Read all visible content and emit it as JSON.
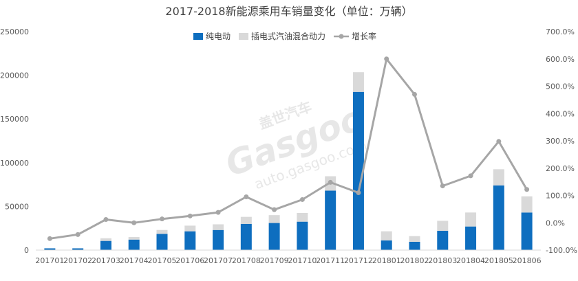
{
  "chart_data": {
    "type": "bar",
    "title": "2017-2018新能源乘用车销量变化（单位：万辆）",
    "categories": [
      "201701",
      "201702",
      "201703",
      "201704",
      "201705",
      "201706",
      "201707",
      "201708",
      "201709",
      "201710",
      "201711",
      "201712",
      "201801",
      "201802",
      "201803",
      "201804",
      "201805",
      "201806"
    ],
    "series": [
      {
        "name": "纯电动",
        "chart": "stacked-bar",
        "axis": "left",
        "color": "#0e6ebf",
        "values": [
          2000,
          2000,
          10500,
          12000,
          18500,
          21500,
          23000,
          30000,
          31000,
          32500,
          68000,
          181000,
          11000,
          9500,
          22000,
          27000,
          74000,
          43000
        ]
      },
      {
        "name": "插电式汽油混合动力",
        "chart": "stacked-bar",
        "axis": "left",
        "color": "#d9d9d9",
        "values": [
          0,
          0,
          3000,
          3000,
          4500,
          6500,
          6500,
          8000,
          9000,
          10000,
          16500,
          22500,
          10500,
          6500,
          11500,
          16000,
          18500,
          18500
        ]
      },
      {
        "name": "增长率",
        "chart": "line",
        "axis": "right",
        "color": "#a6a6a6",
        "unit": "%",
        "values": [
          -58,
          -43,
          12,
          0,
          14,
          25,
          38,
          95,
          48,
          85,
          148,
          110,
          600,
          470,
          135,
          172,
          298,
          122
        ]
      }
    ],
    "y_left": {
      "ylim": [
        0,
        250000
      ],
      "ticks": [
        "0",
        "50000",
        "100000",
        "150000",
        "200000",
        "250000"
      ]
    },
    "y_right": {
      "ylim": [
        -100,
        700
      ],
      "ticks": [
        "-100.0%",
        "0.0%",
        "100.0%",
        "200.0%",
        "300.0%",
        "400.0%",
        "500.0%",
        "600.0%",
        "700.0%"
      ]
    },
    "legend_position": "top-center",
    "grid": false,
    "watermark": {
      "brand": "盖世汽车",
      "logo": "Gasgoo",
      "url": "auto.gasgoo.com"
    }
  }
}
